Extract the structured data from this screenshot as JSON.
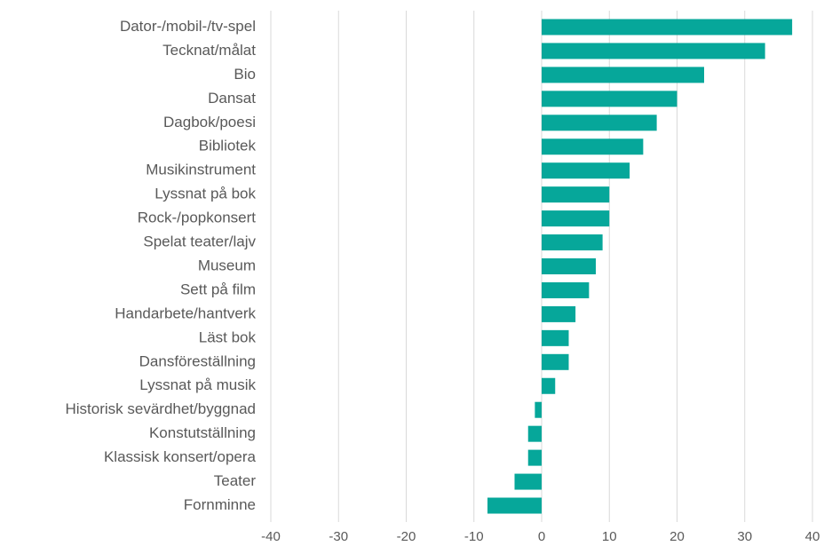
{
  "chart_data": {
    "type": "bar",
    "orientation": "horizontal",
    "categories": [
      "Dator-/mobil-/tv-spel",
      "Tecknat/målat",
      "Bio",
      "Dansat",
      "Dagbok/poesi",
      "Bibliotek",
      "Musikinstrument",
      "Lyssnat på bok",
      "Rock-/popkonsert",
      "Spelat teater/lajv",
      "Museum",
      "Sett på film",
      "Handarbete/hantverk",
      "Läst bok",
      "Dansföreställning",
      "Lyssnat på musik",
      "Historisk sevärdhet/byggnad",
      "Konstutställning",
      "Klassisk konsert/opera",
      "Teater",
      "Fornminne"
    ],
    "values": [
      37,
      33,
      24,
      20,
      17,
      15,
      13,
      10,
      10,
      9,
      8,
      7,
      5,
      4,
      4,
      2,
      -1,
      -2,
      -2,
      -4,
      -8
    ],
    "color": "#06a79a",
    "xlim": [
      -40,
      40
    ],
    "xticks": [
      -40,
      -30,
      -20,
      -10,
      0,
      10,
      20,
      30,
      40
    ],
    "grid": true
  }
}
